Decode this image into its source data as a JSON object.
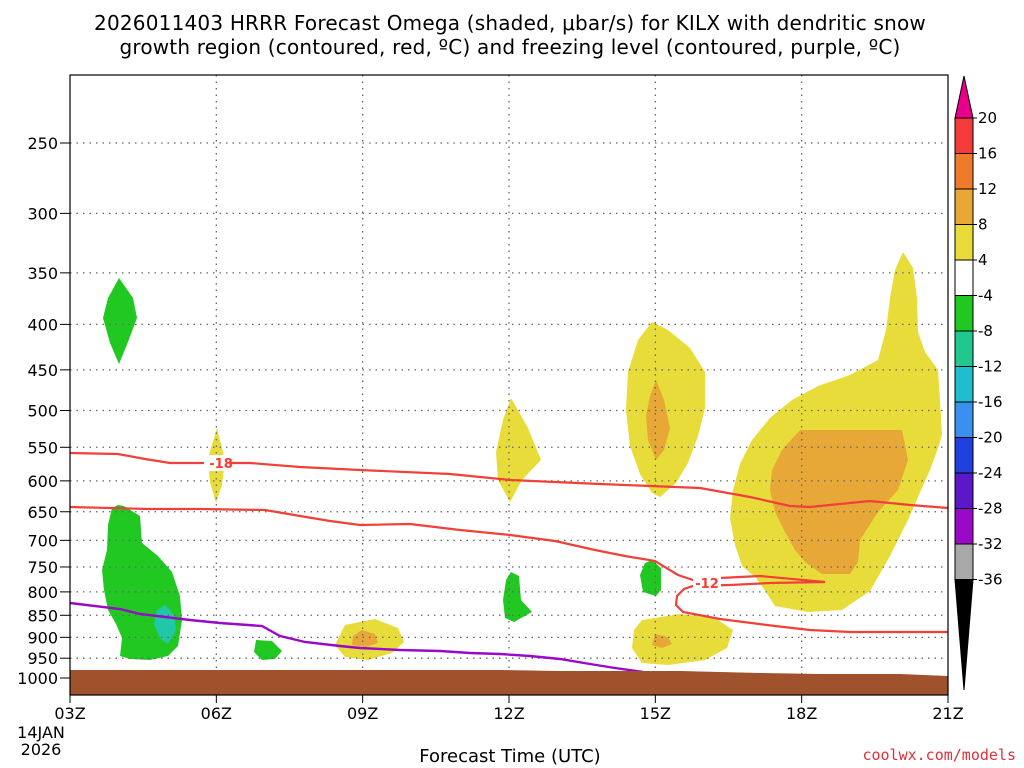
{
  "chart_data": {
    "type": "heatmap",
    "title_line1": "2026011403 HRRR Forecast Omega (shaded, μbar/s) for KILX with dendritic snow",
    "title_line2": "growth region (contoured, red, ºC) and freezing level (contoured, purple, ºC)",
    "xlabel": "Forecast Time (UTC)",
    "credit": "coolwx.com/models",
    "x_ticks": [
      "03Z",
      "06Z",
      "09Z",
      "12Z",
      "15Z",
      "18Z",
      "21Z"
    ],
    "date_label_line1": "14JAN",
    "date_label_line2": "2026",
    "y_ticks": [
      "250",
      "300",
      "350",
      "400",
      "450",
      "500",
      "550",
      "600",
      "650",
      "700",
      "750",
      "800",
      "850",
      "900",
      "950",
      "1000"
    ],
    "y_tick_values": [
      250,
      300,
      350,
      400,
      450,
      500,
      550,
      600,
      650,
      700,
      750,
      800,
      850,
      900,
      950,
      1000
    ],
    "x_range_hours": [
      3,
      21
    ],
    "y_range_hpa": [
      200,
      1025
    ],
    "colorbar": {
      "labels": [
        "20",
        "16",
        "12",
        "8",
        "4",
        "-4",
        "-8",
        "-12",
        "-16",
        "-20",
        "-24",
        "-28",
        "-32",
        "-36"
      ],
      "colors": [
        "#e8008a",
        "#f43a3a",
        "#ef7a2a",
        "#e7a838",
        "#e8dc3a",
        "#ffffff",
        "#22c822",
        "#20c890",
        "#20bcd0",
        "#3a90f0",
        "#2040e0",
        "#5a18c8",
        "#9a08c8",
        "#a8a8a8",
        "#000000"
      ]
    },
    "contour_labels": [
      "-18",
      "-12"
    ],
    "colors": {
      "green": "#22c822",
      "cyan": "#20c8a8",
      "yellow": "#e8dc3a",
      "orange": "#e7a838",
      "red_contour": "#f0403a",
      "purple_contour": "#9a08c8",
      "terrain": "#a0522d"
    }
  }
}
